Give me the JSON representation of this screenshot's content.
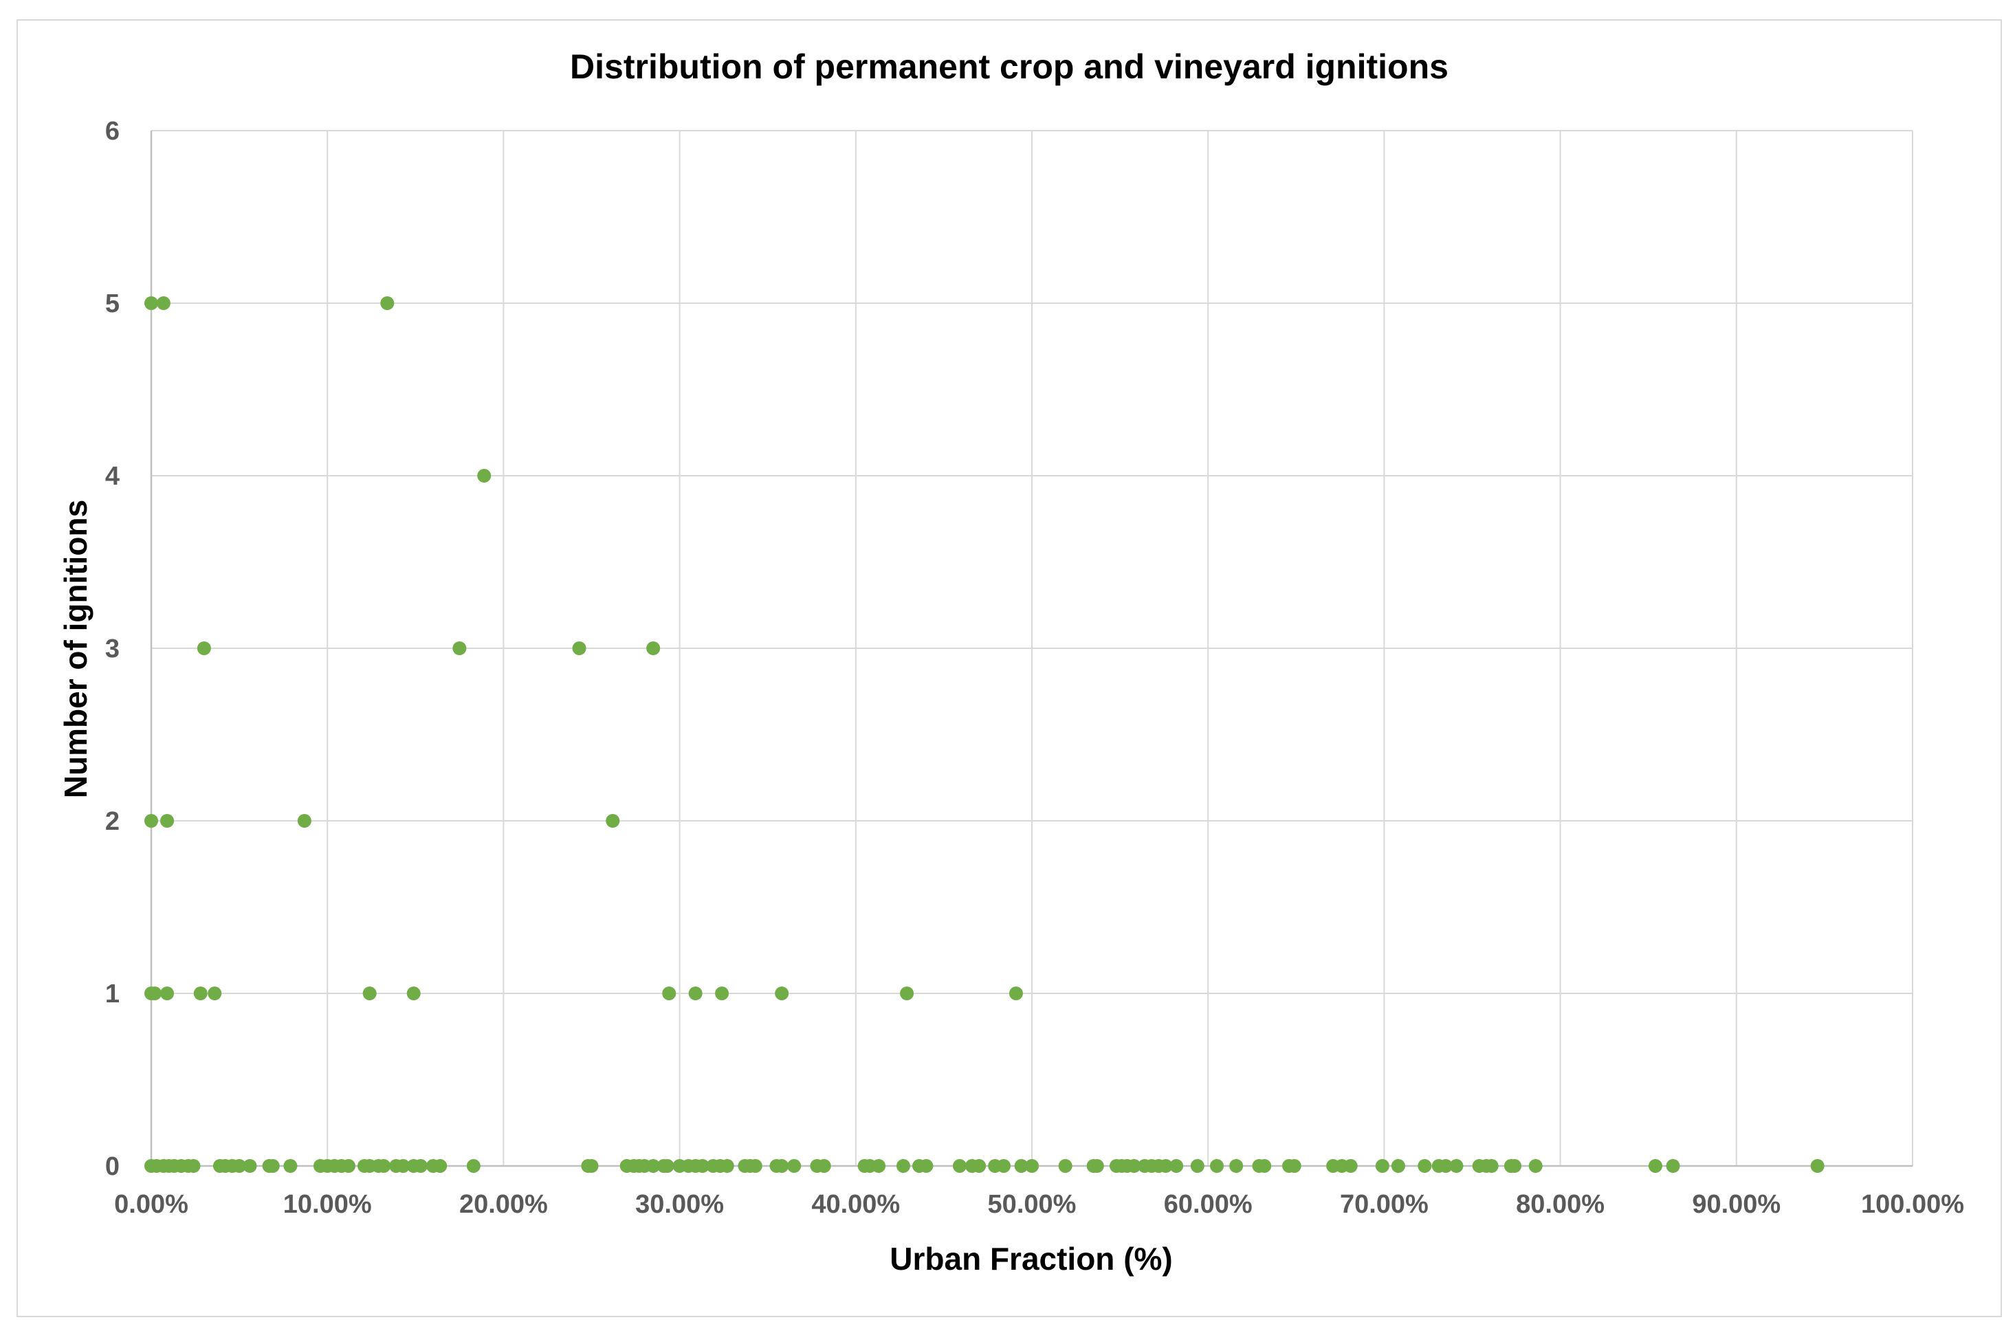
{
  "chart_data": {
    "type": "scatter",
    "title": "Distribution of permanent crop and vineyard ignitions",
    "xlabel": "Urban Fraction (%)",
    "ylabel": "Number of ignitions",
    "xlim": [
      0,
      100
    ],
    "ylim": [
      0,
      6
    ],
    "x_ticks": [
      "0.00%",
      "10.00%",
      "20.00%",
      "30.00%",
      "40.00%",
      "50.00%",
      "60.00%",
      "70.00%",
      "80.00%",
      "90.00%",
      "100.00%"
    ],
    "y_ticks": [
      "0",
      "1",
      "2",
      "3",
      "4",
      "5",
      "6"
    ],
    "grid": true,
    "legend": "none",
    "marker_color": "#70ad47",
    "points": [
      {
        "x": 0.0,
        "y": 5
      },
      {
        "x": 0.7,
        "y": 5
      },
      {
        "x": 13.4,
        "y": 5
      },
      {
        "x": 18.9,
        "y": 4
      },
      {
        "x": 3.0,
        "y": 3
      },
      {
        "x": 17.5,
        "y": 3
      },
      {
        "x": 24.3,
        "y": 3
      },
      {
        "x": 28.5,
        "y": 3
      },
      {
        "x": 0.0,
        "y": 2
      },
      {
        "x": 0.9,
        "y": 2
      },
      {
        "x": 8.7,
        "y": 2
      },
      {
        "x": 26.2,
        "y": 2
      },
      {
        "x": 0.0,
        "y": 1
      },
      {
        "x": 0.2,
        "y": 1
      },
      {
        "x": 0.9,
        "y": 1
      },
      {
        "x": 2.8,
        "y": 1
      },
      {
        "x": 3.6,
        "y": 1
      },
      {
        "x": 12.4,
        "y": 1
      },
      {
        "x": 14.9,
        "y": 1
      },
      {
        "x": 29.4,
        "y": 1
      },
      {
        "x": 30.9,
        "y": 1
      },
      {
        "x": 32.4,
        "y": 1
      },
      {
        "x": 35.8,
        "y": 1
      },
      {
        "x": 42.9,
        "y": 1
      },
      {
        "x": 49.1,
        "y": 1
      },
      {
        "x": 0.0,
        "y": 0
      },
      {
        "x": 0.3,
        "y": 0
      },
      {
        "x": 0.7,
        "y": 0
      },
      {
        "x": 1.0,
        "y": 0
      },
      {
        "x": 1.3,
        "y": 0
      },
      {
        "x": 1.7,
        "y": 0
      },
      {
        "x": 2.1,
        "y": 0
      },
      {
        "x": 2.4,
        "y": 0
      },
      {
        "x": 3.9,
        "y": 0
      },
      {
        "x": 4.2,
        "y": 0
      },
      {
        "x": 4.6,
        "y": 0
      },
      {
        "x": 5.0,
        "y": 0
      },
      {
        "x": 5.6,
        "y": 0
      },
      {
        "x": 6.7,
        "y": 0
      },
      {
        "x": 6.9,
        "y": 0
      },
      {
        "x": 7.9,
        "y": 0
      },
      {
        "x": 9.6,
        "y": 0
      },
      {
        "x": 10.0,
        "y": 0
      },
      {
        "x": 10.4,
        "y": 0
      },
      {
        "x": 10.8,
        "y": 0
      },
      {
        "x": 11.2,
        "y": 0
      },
      {
        "x": 12.1,
        "y": 0
      },
      {
        "x": 12.4,
        "y": 0
      },
      {
        "x": 12.9,
        "y": 0
      },
      {
        "x": 13.2,
        "y": 0
      },
      {
        "x": 13.9,
        "y": 0
      },
      {
        "x": 14.3,
        "y": 0
      },
      {
        "x": 14.9,
        "y": 0
      },
      {
        "x": 15.3,
        "y": 0
      },
      {
        "x": 16.0,
        "y": 0
      },
      {
        "x": 16.4,
        "y": 0
      },
      {
        "x": 18.3,
        "y": 0
      },
      {
        "x": 24.8,
        "y": 0
      },
      {
        "x": 25.0,
        "y": 0
      },
      {
        "x": 27.0,
        "y": 0
      },
      {
        "x": 27.4,
        "y": 0
      },
      {
        "x": 27.7,
        "y": 0
      },
      {
        "x": 28.0,
        "y": 0
      },
      {
        "x": 28.5,
        "y": 0
      },
      {
        "x": 29.1,
        "y": 0
      },
      {
        "x": 29.3,
        "y": 0
      },
      {
        "x": 30.0,
        "y": 0
      },
      {
        "x": 30.5,
        "y": 0
      },
      {
        "x": 30.9,
        "y": 0
      },
      {
        "x": 31.3,
        "y": 0
      },
      {
        "x": 31.9,
        "y": 0
      },
      {
        "x": 32.3,
        "y": 0
      },
      {
        "x": 32.7,
        "y": 0
      },
      {
        "x": 33.7,
        "y": 0
      },
      {
        "x": 34.0,
        "y": 0
      },
      {
        "x": 34.3,
        "y": 0
      },
      {
        "x": 35.5,
        "y": 0
      },
      {
        "x": 35.8,
        "y": 0
      },
      {
        "x": 36.5,
        "y": 0
      },
      {
        "x": 37.8,
        "y": 0
      },
      {
        "x": 38.2,
        "y": 0
      },
      {
        "x": 40.5,
        "y": 0
      },
      {
        "x": 40.8,
        "y": 0
      },
      {
        "x": 41.3,
        "y": 0
      },
      {
        "x": 42.7,
        "y": 0
      },
      {
        "x": 43.6,
        "y": 0
      },
      {
        "x": 44.0,
        "y": 0
      },
      {
        "x": 45.9,
        "y": 0
      },
      {
        "x": 46.6,
        "y": 0
      },
      {
        "x": 47.0,
        "y": 0
      },
      {
        "x": 47.9,
        "y": 0
      },
      {
        "x": 48.4,
        "y": 0
      },
      {
        "x": 49.4,
        "y": 0
      },
      {
        "x": 50.0,
        "y": 0
      },
      {
        "x": 51.9,
        "y": 0
      },
      {
        "x": 53.5,
        "y": 0
      },
      {
        "x": 53.7,
        "y": 0
      },
      {
        "x": 54.8,
        "y": 0
      },
      {
        "x": 55.1,
        "y": 0
      },
      {
        "x": 55.4,
        "y": 0
      },
      {
        "x": 55.8,
        "y": 0
      },
      {
        "x": 56.4,
        "y": 0
      },
      {
        "x": 56.8,
        "y": 0
      },
      {
        "x": 57.2,
        "y": 0
      },
      {
        "x": 57.6,
        "y": 0
      },
      {
        "x": 58.2,
        "y": 0
      },
      {
        "x": 59.4,
        "y": 0
      },
      {
        "x": 60.5,
        "y": 0
      },
      {
        "x": 61.6,
        "y": 0
      },
      {
        "x": 62.9,
        "y": 0
      },
      {
        "x": 63.2,
        "y": 0
      },
      {
        "x": 64.6,
        "y": 0
      },
      {
        "x": 64.9,
        "y": 0
      },
      {
        "x": 67.1,
        "y": 0
      },
      {
        "x": 67.6,
        "y": 0
      },
      {
        "x": 68.1,
        "y": 0
      },
      {
        "x": 69.9,
        "y": 0
      },
      {
        "x": 70.8,
        "y": 0
      },
      {
        "x": 72.3,
        "y": 0
      },
      {
        "x": 73.1,
        "y": 0
      },
      {
        "x": 73.5,
        "y": 0
      },
      {
        "x": 74.1,
        "y": 0
      },
      {
        "x": 75.4,
        "y": 0
      },
      {
        "x": 75.8,
        "y": 0
      },
      {
        "x": 76.1,
        "y": 0
      },
      {
        "x": 77.2,
        "y": 0
      },
      {
        "x": 77.4,
        "y": 0
      },
      {
        "x": 78.6,
        "y": 0
      },
      {
        "x": 85.4,
        "y": 0
      },
      {
        "x": 86.4,
        "y": 0
      },
      {
        "x": 94.6,
        "y": 0
      }
    ]
  }
}
